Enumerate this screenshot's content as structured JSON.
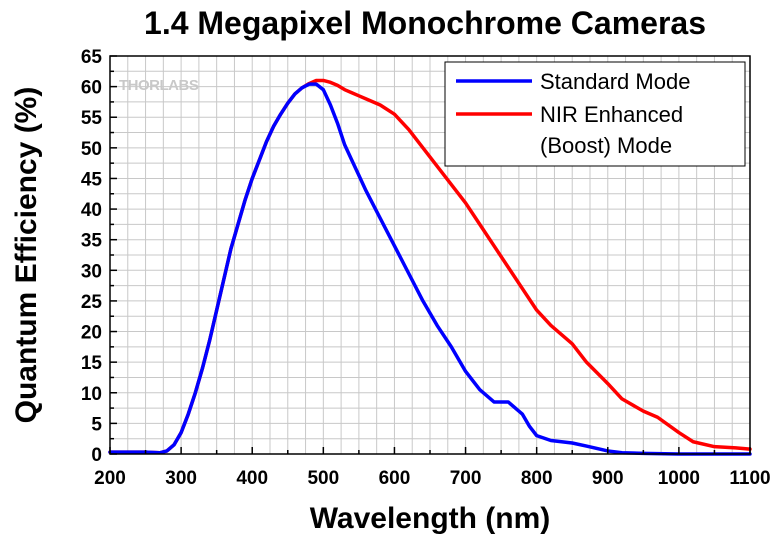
{
  "chart_data": {
    "type": "line",
    "title": "1.4 Megapixel Monochrome Cameras",
    "xlabel": "Wavelength (nm)",
    "ylabel": "Quantum Efficiency (%)",
    "xlim": [
      200,
      1100
    ],
    "ylim": [
      0,
      65
    ],
    "xticks": [
      200,
      300,
      400,
      500,
      600,
      700,
      800,
      900,
      1000,
      1100
    ],
    "yticks": [
      0,
      5,
      10,
      15,
      20,
      25,
      30,
      35,
      40,
      45,
      50,
      55,
      60,
      65
    ],
    "grid": true,
    "legend_position": "top-right",
    "watermark": "THORLABS",
    "series": [
      {
        "name": "Standard Mode",
        "color": "#0000ff",
        "x": [
          200,
          250,
          270,
          280,
          290,
          300,
          310,
          320,
          330,
          340,
          350,
          360,
          370,
          380,
          390,
          400,
          410,
          420,
          430,
          440,
          450,
          460,
          470,
          480,
          490,
          500,
          510,
          520,
          530,
          540,
          550,
          560,
          580,
          600,
          620,
          640,
          660,
          680,
          700,
          720,
          740,
          760,
          780,
          790,
          800,
          820,
          850,
          870,
          900,
          920,
          950,
          1000,
          1050,
          1100
        ],
        "y": [
          0.3,
          0.3,
          0.2,
          0.5,
          1.5,
          3.5,
          6.5,
          10,
          14,
          18.5,
          23.5,
          28.5,
          33.5,
          37.5,
          41.5,
          45,
          48,
          51,
          53.5,
          55.5,
          57.3,
          58.8,
          59.8,
          60.4,
          60.4,
          59.5,
          57,
          54,
          50.5,
          48,
          45.5,
          43,
          38.5,
          34,
          29.5,
          25,
          21,
          17.5,
          13.5,
          10.5,
          8.5,
          8.5,
          6.5,
          4.5,
          3,
          2.2,
          1.8,
          1.3,
          0.5,
          0.2,
          0.1,
          0,
          0,
          0
        ]
      },
      {
        "name": "NIR Enhanced (Boost) Mode",
        "legend_lines": [
          "NIR Enhanced",
          "(Boost) Mode"
        ],
        "color": "#ff0000",
        "x": [
          200,
          250,
          270,
          280,
          290,
          300,
          310,
          320,
          330,
          340,
          350,
          360,
          370,
          380,
          390,
          400,
          410,
          420,
          430,
          440,
          450,
          460,
          470,
          480,
          490,
          500,
          510,
          520,
          530,
          540,
          550,
          560,
          580,
          600,
          620,
          640,
          660,
          680,
          700,
          720,
          740,
          760,
          780,
          800,
          820,
          850,
          870,
          900,
          920,
          950,
          970,
          1000,
          1020,
          1050,
          1080,
          1100
        ],
        "y": [
          0.3,
          0.3,
          0.2,
          0.5,
          1.5,
          3.5,
          6.5,
          10,
          14,
          18.5,
          23.5,
          28.5,
          33.5,
          37.5,
          41.5,
          45,
          48,
          51,
          53.5,
          55.5,
          57.3,
          58.8,
          59.8,
          60.5,
          61,
          61,
          60.7,
          60.2,
          59.5,
          59,
          58.5,
          58,
          57,
          55.5,
          53,
          50,
          47,
          44,
          41,
          37.5,
          34,
          30.5,
          27,
          23.5,
          21,
          18,
          15,
          11.5,
          9,
          7,
          6,
          3.5,
          2,
          1.2,
          1,
          0.8
        ]
      }
    ]
  }
}
